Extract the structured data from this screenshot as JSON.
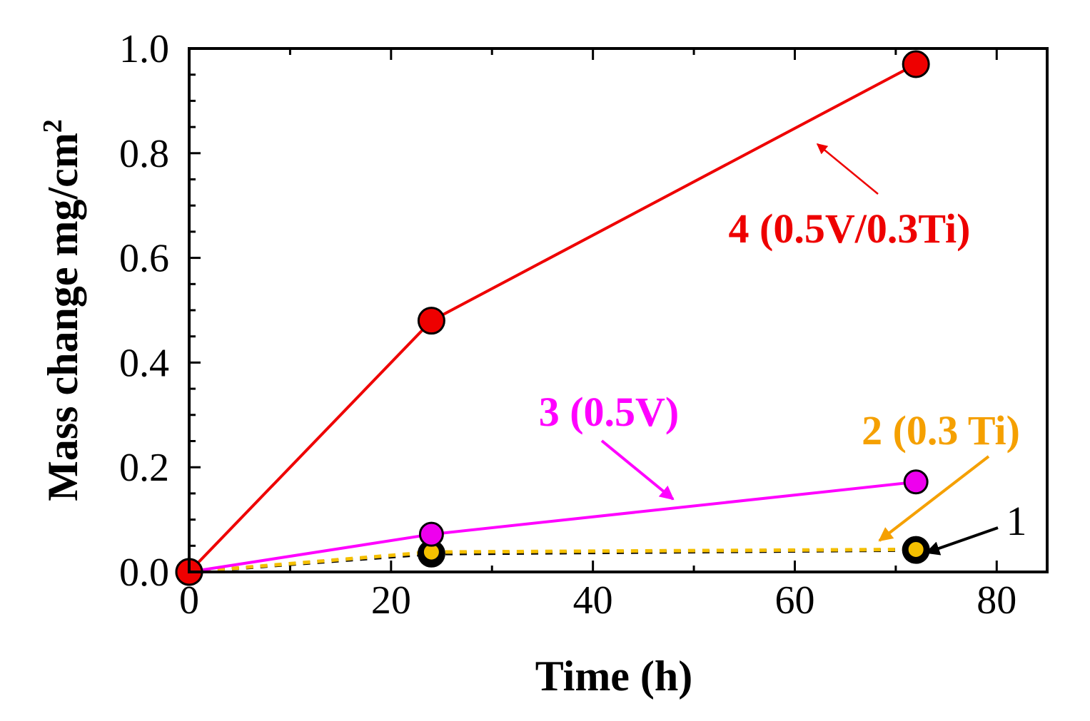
{
  "chart_data": {
    "type": "line",
    "xlabel": "Time (h)",
    "ylabel_main": "Mass change mg/cm",
    "ylabel_sup": "2",
    "xlim": [
      0,
      85
    ],
    "ylim": [
      0,
      1.0
    ],
    "xticks": [
      0,
      20,
      40,
      60,
      80
    ],
    "xtick_labels": [
      "0",
      "20",
      "40",
      "60",
      "80"
    ],
    "yticks": [
      0,
      0.2,
      0.4,
      0.6,
      0.8,
      1.0
    ],
    "ytick_labels": [
      "0.0",
      "0.2",
      "0.4",
      "0.6",
      "0.8",
      "1.0"
    ],
    "grid": false,
    "series": [
      {
        "label": "1",
        "color": "#000000",
        "marker_fill": "#000000",
        "dashed": true,
        "dash_color": "#000000",
        "x": [
          0,
          24,
          72
        ],
        "y": [
          0.0,
          0.035,
          0.042
        ]
      },
      {
        "label": "2 (0.3 Ti)",
        "color": "#F5A000",
        "marker_fill": "#F5C000",
        "dashed": true,
        "dash_color": "#F5C000",
        "x": [
          0,
          24,
          72
        ],
        "y": [
          0.0,
          0.038,
          0.043
        ]
      },
      {
        "label": "3 (0.5V)",
        "color": "#FF00FF",
        "marker_fill": "#EE00EE",
        "dashed": false,
        "x": [
          0,
          24,
          72
        ],
        "y": [
          0.0,
          0.072,
          0.172
        ]
      },
      {
        "label": "4 (0.5V/0.3Ti)",
        "color": "#EE0000",
        "marker_fill": "#EE0000",
        "dashed": false,
        "x": [
          0,
          24,
          72
        ],
        "y": [
          0.0,
          0.48,
          0.97
        ]
      }
    ]
  }
}
